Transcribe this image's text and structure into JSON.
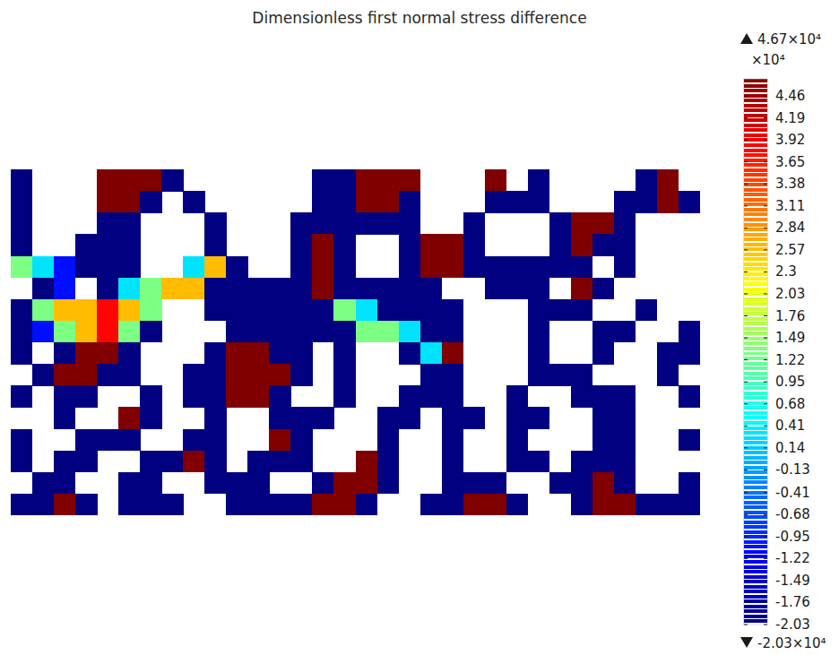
{
  "chart_data": {
    "type": "heatmap",
    "title": "Dimensionless first normal stress difference",
    "color_multiplier": "×10⁴",
    "color_range": [
      -2.03,
      4.67
    ],
    "color_ticks": [
      4.46,
      4.19,
      3.92,
      3.65,
      3.38,
      3.11,
      2.84,
      2.57,
      2.3,
      2.03,
      1.76,
      1.49,
      1.22,
      0.95,
      0.68,
      0.41,
      0.14,
      -0.13,
      -0.41,
      -0.68,
      -0.95,
      -1.22,
      -1.49,
      -1.76,
      -2.03
    ],
    "color_max": {
      "value": 4.67,
      "label": "4.67×10⁴"
    },
    "color_min": {
      "value": -2.03,
      "label": "-2.03×10⁴"
    },
    "tick_labels": false,
    "cells": [
      [
        -2.03,
        null,
        null,
        null,
        4.67,
        4.67,
        4.67,
        -2.03,
        null,
        null,
        null,
        null,
        null,
        null,
        -2.03,
        -2.03,
        4.67,
        4.67,
        4.67,
        null,
        null,
        null,
        4.67,
        null,
        -2.03,
        null,
        null,
        null,
        null,
        -2.03,
        4.67,
        null
      ],
      [
        -2.03,
        null,
        null,
        null,
        4.67,
        4.67,
        -2.03,
        null,
        -2.03,
        null,
        null,
        null,
        null,
        null,
        -2.03,
        -2.03,
        4.67,
        4.67,
        -2.03,
        null,
        null,
        null,
        -2.03,
        -2.03,
        -2.03,
        null,
        null,
        null,
        -2.03,
        -2.03,
        4.67,
        -2.03
      ],
      [
        -2.03,
        null,
        null,
        null,
        -2.03,
        -2.03,
        null,
        null,
        null,
        -2.03,
        null,
        null,
        null,
        -2.03,
        -2.03,
        -2.03,
        -2.03,
        -2.03,
        -2.03,
        null,
        null,
        -2.03,
        null,
        null,
        null,
        -2.03,
        4.67,
        4.67,
        -2.03,
        null,
        null,
        null
      ],
      [
        -2.03,
        null,
        null,
        -2.03,
        -2.03,
        -2.03,
        null,
        null,
        null,
        -2.03,
        null,
        null,
        null,
        -2.03,
        4.67,
        -2.03,
        null,
        null,
        -2.03,
        4.67,
        4.67,
        -2.03,
        null,
        null,
        null,
        -2.03,
        4.67,
        -2.03,
        -2.03,
        null,
        null,
        null
      ],
      [
        1.3,
        0.3,
        -1.1,
        -2.03,
        -2.03,
        -2.03,
        null,
        null,
        0.3,
        2.6,
        -2.03,
        null,
        null,
        -2.03,
        4.67,
        -2.03,
        null,
        null,
        -2.03,
        4.67,
        4.67,
        -2.03,
        -2.03,
        -2.03,
        -2.03,
        -2.03,
        -2.03,
        null,
        -2.03,
        null,
        null,
        null
      ],
      [
        null,
        -2.03,
        -1.1,
        null,
        -2.03,
        0.3,
        1.3,
        2.6,
        2.6,
        -2.03,
        -2.03,
        -2.03,
        -2.03,
        -2.03,
        4.67,
        -2.03,
        -2.03,
        -2.03,
        -2.03,
        -2.03,
        null,
        null,
        -2.03,
        -2.03,
        -2.03,
        null,
        4.67,
        -2.03,
        null,
        null,
        null,
        null
      ],
      [
        -2.03,
        1.3,
        2.6,
        2.6,
        3.8,
        2.6,
        1.3,
        null,
        null,
        -2.03,
        -2.03,
        -2.03,
        -2.03,
        -2.03,
        -2.03,
        1.3,
        0.3,
        -2.03,
        -2.03,
        -2.03,
        -2.03,
        null,
        null,
        null,
        -2.03,
        -2.03,
        -2.03,
        null,
        null,
        -2.03,
        null,
        null
      ],
      [
        -2.03,
        -1.1,
        1.3,
        2.6,
        3.8,
        1.3,
        -2.03,
        null,
        null,
        null,
        -2.03,
        -2.03,
        -2.03,
        -2.03,
        -2.03,
        -2.03,
        1.3,
        1.3,
        0.3,
        -2.03,
        -2.03,
        null,
        null,
        null,
        -2.03,
        null,
        null,
        -2.03,
        -2.03,
        null,
        null,
        -2.03
      ],
      [
        -2.03,
        null,
        -2.03,
        4.67,
        4.67,
        -2.03,
        null,
        null,
        null,
        -2.03,
        4.67,
        4.67,
        -2.03,
        -2.03,
        null,
        -2.03,
        null,
        null,
        -2.03,
        0.3,
        4.67,
        null,
        null,
        null,
        -2.03,
        null,
        null,
        -2.03,
        null,
        null,
        -2.03,
        -2.03
      ],
      [
        null,
        -2.03,
        4.67,
        4.67,
        -2.03,
        -2.03,
        null,
        null,
        -2.03,
        -2.03,
        4.67,
        4.67,
        4.67,
        -2.03,
        null,
        -2.03,
        null,
        null,
        null,
        -2.03,
        -2.03,
        null,
        null,
        null,
        -2.03,
        -2.03,
        -2.03,
        null,
        null,
        null,
        -2.03,
        null
      ],
      [
        -2.03,
        null,
        -2.03,
        -2.03,
        null,
        null,
        -2.03,
        null,
        -2.03,
        -2.03,
        4.67,
        4.67,
        -2.03,
        null,
        null,
        -2.03,
        null,
        null,
        -2.03,
        -2.03,
        -2.03,
        null,
        null,
        -2.03,
        null,
        null,
        -2.03,
        -2.03,
        -2.03,
        null,
        null,
        -2.03
      ],
      [
        null,
        null,
        -2.03,
        null,
        null,
        4.67,
        -2.03,
        null,
        null,
        -2.03,
        null,
        null,
        -2.03,
        -2.03,
        -2.03,
        null,
        null,
        -2.03,
        -2.03,
        null,
        -2.03,
        -2.03,
        null,
        -2.03,
        -2.03,
        null,
        null,
        -2.03,
        -2.03,
        null,
        null,
        null
      ],
      [
        -2.03,
        null,
        null,
        -2.03,
        -2.03,
        -2.03,
        null,
        null,
        -2.03,
        -2.03,
        null,
        null,
        4.67,
        -2.03,
        null,
        null,
        null,
        -2.03,
        null,
        null,
        -2.03,
        null,
        null,
        -2.03,
        null,
        null,
        null,
        -2.03,
        -2.03,
        null,
        null,
        -2.03
      ],
      [
        -2.03,
        null,
        -2.03,
        -2.03,
        null,
        null,
        -2.03,
        -2.03,
        4.67,
        -2.03,
        null,
        -2.03,
        -2.03,
        -2.03,
        null,
        null,
        4.67,
        -2.03,
        null,
        null,
        -2.03,
        null,
        null,
        -2.03,
        -2.03,
        null,
        -2.03,
        -2.03,
        -2.03,
        null,
        null,
        null
      ],
      [
        null,
        -2.03,
        -2.03,
        null,
        null,
        -2.03,
        -2.03,
        null,
        null,
        -2.03,
        -2.03,
        -2.03,
        null,
        null,
        -2.03,
        4.67,
        4.67,
        -2.03,
        null,
        null,
        -2.03,
        -2.03,
        -2.03,
        null,
        null,
        -2.03,
        -2.03,
        4.67,
        -2.03,
        null,
        null,
        -2.03
      ],
      [
        -2.03,
        -2.03,
        4.67,
        -2.03,
        null,
        -2.03,
        -2.03,
        -2.03,
        null,
        null,
        -2.03,
        -2.03,
        -2.03,
        -2.03,
        4.67,
        4.67,
        -2.03,
        null,
        null,
        -2.03,
        -2.03,
        4.67,
        4.67,
        -2.03,
        null,
        null,
        -2.03,
        4.67,
        4.67,
        -2.03,
        -2.03,
        -2.03
      ]
    ]
  }
}
